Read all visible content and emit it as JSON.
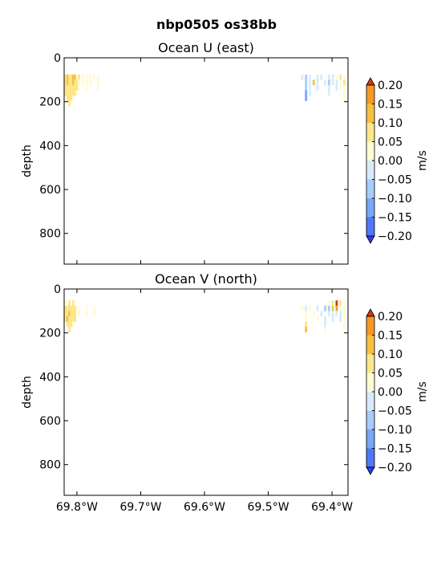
{
  "suptitle": "nbp0505 os38bb",
  "colors": {
    "levels": [
      -0.2,
      -0.15,
      -0.1,
      -0.05,
      0.0,
      0.05,
      0.1,
      0.15,
      0.2
    ],
    "bands": [
      "#4e79f6",
      "#78a6f8",
      "#a7ccfb",
      "#d6ecfc",
      "#fffbd4",
      "#fde68a",
      "#f8c040",
      "#f59a25"
    ],
    "under": "#2f3cf0",
    "over": "#d83a0c"
  },
  "chart_data": [
    {
      "type": "heatmap",
      "title": "Ocean U (east)",
      "xlabel": "",
      "ylabel": "depth",
      "xlim": [
        -69.82,
        -69.375
      ],
      "ylim": [
        940,
        0
      ],
      "xticks": [
        -69.8,
        -69.7,
        -69.6,
        -69.5,
        -69.4
      ],
      "xticklabels": [
        "69.8°W",
        "69.7°W",
        "69.6°W",
        "69.5°W",
        "69.4°W"
      ],
      "yticks": [
        0,
        200,
        400,
        600,
        800
      ],
      "yticklabels": [
        "0",
        "200",
        "400",
        "600",
        "800"
      ],
      "show_xticklabels": false,
      "colorbar": {
        "label": "m/s",
        "ticks": [
          0.2,
          0.15,
          0.1,
          0.05,
          0.0,
          -0.05,
          -0.1,
          -0.15,
          -0.2
        ],
        "ticklabels": [
          "0.20",
          "0.15",
          "0.10",
          "0.05",
          "0.00",
          "−0.05",
          "−0.10",
          "−0.15",
          "−0.20"
        ]
      },
      "cells": [
        {
          "lon": -69.818,
          "d": 88,
          "v": 0.07
        },
        {
          "lon": -69.815,
          "d": 88,
          "v": 0.12
        },
        {
          "lon": -69.812,
          "d": 88,
          "v": 0.06
        },
        {
          "lon": -69.809,
          "d": 88,
          "v": 0.08
        },
        {
          "lon": -69.806,
          "d": 88,
          "v": 0.13
        },
        {
          "lon": -69.803,
          "d": 88,
          "v": 0.11
        },
        {
          "lon": -69.8,
          "d": 88,
          "v": 0.04
        },
        {
          "lon": -69.797,
          "d": 88,
          "v": 0.06
        },
        {
          "lon": -69.791,
          "d": 88,
          "v": 0.03
        },
        {
          "lon": -69.785,
          "d": 88,
          "v": 0.02
        },
        {
          "lon": -69.779,
          "d": 88,
          "v": 0.01
        },
        {
          "lon": -69.773,
          "d": 88,
          "v": 0.02
        },
        {
          "lon": -69.767,
          "d": 88,
          "v": 0.01
        },
        {
          "lon": -69.818,
          "d": 112,
          "v": 0.09
        },
        {
          "lon": -69.815,
          "d": 112,
          "v": 0.11
        },
        {
          "lon": -69.812,
          "d": 112,
          "v": 0.08
        },
        {
          "lon": -69.809,
          "d": 112,
          "v": 0.07
        },
        {
          "lon": -69.806,
          "d": 112,
          "v": 0.12
        },
        {
          "lon": -69.803,
          "d": 112,
          "v": 0.08
        },
        {
          "lon": -69.8,
          "d": 112,
          "v": 0.06
        },
        {
          "lon": -69.797,
          "d": 112,
          "v": 0.04
        },
        {
          "lon": -69.791,
          "d": 112,
          "v": 0.02
        },
        {
          "lon": -69.785,
          "d": 112,
          "v": 0.03
        },
        {
          "lon": -69.779,
          "d": 112,
          "v": 0.02
        },
        {
          "lon": -69.767,
          "d": 112,
          "v": 0.02
        },
        {
          "lon": -69.818,
          "d": 136,
          "v": 0.08
        },
        {
          "lon": -69.815,
          "d": 136,
          "v": 0.06
        },
        {
          "lon": -69.812,
          "d": 136,
          "v": 0.07
        },
        {
          "lon": -69.809,
          "d": 136,
          "v": 0.06
        },
        {
          "lon": -69.806,
          "d": 136,
          "v": 0.09
        },
        {
          "lon": -69.803,
          "d": 136,
          "v": 0.07
        },
        {
          "lon": -69.8,
          "d": 136,
          "v": 0.05
        },
        {
          "lon": -69.797,
          "d": 136,
          "v": 0.03
        },
        {
          "lon": -69.785,
          "d": 136,
          "v": 0.02
        },
        {
          "lon": -69.767,
          "d": 136,
          "v": 0.01
        },
        {
          "lon": -69.818,
          "d": 160,
          "v": 0.06
        },
        {
          "lon": -69.815,
          "d": 160,
          "v": 0.07
        },
        {
          "lon": -69.812,
          "d": 160,
          "v": 0.08
        },
        {
          "lon": -69.809,
          "d": 160,
          "v": 0.06
        },
        {
          "lon": -69.806,
          "d": 160,
          "v": 0.05
        },
        {
          "lon": -69.803,
          "d": 160,
          "v": 0.07
        },
        {
          "lon": -69.8,
          "d": 160,
          "v": 0.04
        },
        {
          "lon": -69.815,
          "d": 184,
          "v": 0.06
        },
        {
          "lon": -69.812,
          "d": 184,
          "v": 0.05
        },
        {
          "lon": -69.809,
          "d": 184,
          "v": 0.07
        },
        {
          "lon": -69.806,
          "d": 184,
          "v": 0.04
        },
        {
          "lon": -69.812,
          "d": 208,
          "v": 0.05
        },
        {
          "lon": -69.447,
          "d": 88,
          "v": -0.02
        },
        {
          "lon": -69.441,
          "d": 88,
          "v": -0.06
        },
        {
          "lon": -69.435,
          "d": 88,
          "v": -0.03
        },
        {
          "lon": -69.423,
          "d": 88,
          "v": -0.02
        },
        {
          "lon": -69.417,
          "d": 88,
          "v": -0.04
        },
        {
          "lon": -69.405,
          "d": 88,
          "v": -0.03
        },
        {
          "lon": -69.399,
          "d": 88,
          "v": -0.02
        },
        {
          "lon": -69.393,
          "d": 88,
          "v": 0.02
        },
        {
          "lon": -69.387,
          "d": 88,
          "v": 0.05
        },
        {
          "lon": -69.381,
          "d": 88,
          "v": 0.03
        },
        {
          "lon": -69.441,
          "d": 112,
          "v": -0.08
        },
        {
          "lon": -69.435,
          "d": 112,
          "v": -0.04
        },
        {
          "lon": -69.429,
          "d": 112,
          "v": 0.12
        },
        {
          "lon": -69.423,
          "d": 112,
          "v": -0.03
        },
        {
          "lon": -69.411,
          "d": 112,
          "v": -0.04
        },
        {
          "lon": -69.405,
          "d": 112,
          "v": -0.07
        },
        {
          "lon": -69.399,
          "d": 112,
          "v": -0.04
        },
        {
          "lon": -69.393,
          "d": 112,
          "v": -0.03
        },
        {
          "lon": -69.387,
          "d": 112,
          "v": 0.04
        },
        {
          "lon": -69.381,
          "d": 112,
          "v": 0.06
        },
        {
          "lon": -69.441,
          "d": 136,
          "v": -0.09
        },
        {
          "lon": -69.435,
          "d": 136,
          "v": -0.05
        },
        {
          "lon": -69.423,
          "d": 136,
          "v": -0.02
        },
        {
          "lon": -69.405,
          "d": 136,
          "v": -0.03
        },
        {
          "lon": -69.393,
          "d": 136,
          "v": -0.02
        },
        {
          "lon": -69.387,
          "d": 136,
          "v": 0.03
        },
        {
          "lon": -69.381,
          "d": 136,
          "v": 0.02
        },
        {
          "lon": -69.441,
          "d": 160,
          "v": -0.11
        },
        {
          "lon": -69.435,
          "d": 160,
          "v": -0.04
        },
        {
          "lon": -69.405,
          "d": 160,
          "v": -0.02
        },
        {
          "lon": -69.381,
          "d": 160,
          "v": 0.04
        },
        {
          "lon": -69.441,
          "d": 184,
          "v": -0.12
        },
        {
          "lon": -69.381,
          "d": 184,
          "v": 0.03
        }
      ]
    },
    {
      "type": "heatmap",
      "title": "Ocean V (north)",
      "xlabel": "",
      "ylabel": "depth",
      "xlim": [
        -69.82,
        -69.375
      ],
      "ylim": [
        940,
        0
      ],
      "xticks": [
        -69.8,
        -69.7,
        -69.6,
        -69.5,
        -69.4
      ],
      "xticklabels": [
        "69.8°W",
        "69.7°W",
        "69.6°W",
        "69.5°W",
        "69.4°W"
      ],
      "yticks": [
        0,
        200,
        400,
        600,
        800
      ],
      "yticklabels": [
        "0",
        "200",
        "400",
        "600",
        "800"
      ],
      "show_xticklabels": true,
      "colorbar": {
        "label": "m/s",
        "ticks": [
          0.2,
          0.15,
          0.1,
          0.05,
          0.0,
          -0.05,
          -0.1,
          -0.15,
          -0.2
        ],
        "ticklabels": [
          "0.20",
          "0.15",
          "0.10",
          "0.05",
          "0.00",
          "−0.05",
          "−0.10",
          "−0.15",
          "−0.20"
        ]
      },
      "cells": [
        {
          "lon": -69.818,
          "d": 64,
          "v": 0.04
        },
        {
          "lon": -69.812,
          "d": 64,
          "v": 0.06
        },
        {
          "lon": -69.806,
          "d": 64,
          "v": 0.05
        },
        {
          "lon": -69.818,
          "d": 88,
          "v": 0.07
        },
        {
          "lon": -69.815,
          "d": 88,
          "v": 0.08
        },
        {
          "lon": -69.812,
          "d": 88,
          "v": 0.06
        },
        {
          "lon": -69.809,
          "d": 88,
          "v": 0.09
        },
        {
          "lon": -69.806,
          "d": 88,
          "v": 0.07
        },
        {
          "lon": -69.803,
          "d": 88,
          "v": 0.05
        },
        {
          "lon": -69.797,
          "d": 88,
          "v": 0.04
        },
        {
          "lon": -69.785,
          "d": 88,
          "v": 0.02
        },
        {
          "lon": -69.773,
          "d": 88,
          "v": 0.02
        },
        {
          "lon": -69.818,
          "d": 112,
          "v": 0.08
        },
        {
          "lon": -69.815,
          "d": 112,
          "v": 0.06
        },
        {
          "lon": -69.812,
          "d": 112,
          "v": 0.1
        },
        {
          "lon": -69.809,
          "d": 112,
          "v": 0.07
        },
        {
          "lon": -69.806,
          "d": 112,
          "v": 0.08
        },
        {
          "lon": -69.803,
          "d": 112,
          "v": 0.06
        },
        {
          "lon": -69.797,
          "d": 112,
          "v": 0.03
        },
        {
          "lon": -69.785,
          "d": 112,
          "v": 0.02
        },
        {
          "lon": -69.773,
          "d": 112,
          "v": 0.01
        },
        {
          "lon": -69.818,
          "d": 136,
          "v": 0.09
        },
        {
          "lon": -69.815,
          "d": 136,
          "v": 0.11
        },
        {
          "lon": -69.812,
          "d": 136,
          "v": 0.08
        },
        {
          "lon": -69.809,
          "d": 136,
          "v": 0.06
        },
        {
          "lon": -69.806,
          "d": 136,
          "v": 0.07
        },
        {
          "lon": -69.803,
          "d": 136,
          "v": 0.05
        },
        {
          "lon": -69.815,
          "d": 160,
          "v": 0.07
        },
        {
          "lon": -69.812,
          "d": 160,
          "v": 0.06
        },
        {
          "lon": -69.809,
          "d": 160,
          "v": 0.05
        },
        {
          "lon": -69.806,
          "d": 160,
          "v": 0.04
        },
        {
          "lon": -69.812,
          "d": 184,
          "v": 0.05
        },
        {
          "lon": -69.809,
          "d": 184,
          "v": 0.04
        },
        {
          "lon": -69.405,
          "d": 64,
          "v": 0.04
        },
        {
          "lon": -69.399,
          "d": 64,
          "v": 0.09
        },
        {
          "lon": -69.393,
          "d": 64,
          "v": 0.22
        },
        {
          "lon": -69.387,
          "d": 64,
          "v": 0.05
        },
        {
          "lon": -69.381,
          "d": 64,
          "v": 0.03
        },
        {
          "lon": -69.447,
          "d": 88,
          "v": 0.02
        },
        {
          "lon": -69.441,
          "d": 88,
          "v": -0.02
        },
        {
          "lon": -69.435,
          "d": 88,
          "v": 0.03
        },
        {
          "lon": -69.423,
          "d": 88,
          "v": -0.03
        },
        {
          "lon": -69.411,
          "d": 88,
          "v": -0.06
        },
        {
          "lon": -69.405,
          "d": 88,
          "v": -0.08
        },
        {
          "lon": -69.399,
          "d": 88,
          "v": 0.12
        },
        {
          "lon": -69.393,
          "d": 88,
          "v": 0.16
        },
        {
          "lon": -69.387,
          "d": 88,
          "v": 0.04
        },
        {
          "lon": -69.381,
          "d": 88,
          "v": 0.02
        },
        {
          "lon": -69.441,
          "d": 112,
          "v": 0.04
        },
        {
          "lon": -69.429,
          "d": 112,
          "v": 0.02
        },
        {
          "lon": -69.417,
          "d": 112,
          "v": -0.03
        },
        {
          "lon": -69.405,
          "d": 112,
          "v": -0.04
        },
        {
          "lon": -69.399,
          "d": 112,
          "v": -0.05
        },
        {
          "lon": -69.393,
          "d": 112,
          "v": -0.02
        },
        {
          "lon": -69.387,
          "d": 112,
          "v": -0.03
        },
        {
          "lon": -69.381,
          "d": 112,
          "v": 0.02
        },
        {
          "lon": -69.441,
          "d": 136,
          "v": 0.03
        },
        {
          "lon": -69.423,
          "d": 136,
          "v": 0.02
        },
        {
          "lon": -69.411,
          "d": 136,
          "v": -0.02
        },
        {
          "lon": -69.399,
          "d": 136,
          "v": -0.03
        },
        {
          "lon": -69.387,
          "d": 136,
          "v": -0.02
        },
        {
          "lon": -69.381,
          "d": 136,
          "v": 0.03
        },
        {
          "lon": -69.441,
          "d": 160,
          "v": 0.05
        },
        {
          "lon": -69.411,
          "d": 160,
          "v": -0.02
        },
        {
          "lon": -69.381,
          "d": 160,
          "v": 0.02
        },
        {
          "lon": -69.441,
          "d": 184,
          "v": 0.11
        },
        {
          "lon": -69.411,
          "d": 184,
          "v": 0.01
        },
        {
          "lon": -69.381,
          "d": 184,
          "v": 0.02
        }
      ]
    }
  ]
}
